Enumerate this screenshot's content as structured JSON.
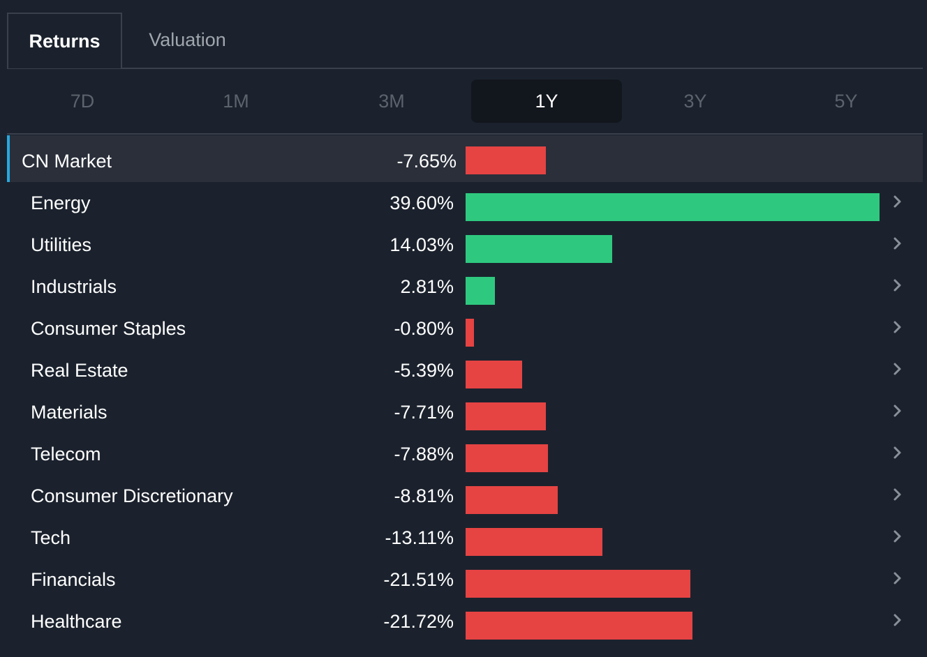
{
  "tabs": [
    {
      "label": "Returns",
      "active": true
    },
    {
      "label": "Valuation",
      "active": false
    }
  ],
  "periods": [
    "7D",
    "1M",
    "3M",
    "1Y",
    "3Y",
    "5Y"
  ],
  "active_period": "1Y",
  "colors": {
    "positive": "#2ec97f",
    "negative": "#e64343",
    "highlight": "#29a8df"
  },
  "chart_data": {
    "type": "bar",
    "orientation": "horizontal",
    "categories": [
      "CN Market",
      "Energy",
      "Utilities",
      "Industrials",
      "Consumer Staples",
      "Real Estate",
      "Materials",
      "Telecom",
      "Consumer Discretionary",
      "Tech",
      "Financials",
      "Healthcare"
    ],
    "values": [
      -7.65,
      39.6,
      14.03,
      2.81,
      -0.8,
      -5.39,
      -7.71,
      -7.88,
      -8.81,
      -13.11,
      -21.51,
      -21.72
    ],
    "labels": [
      "-7.65%",
      "39.60%",
      "14.03%",
      "2.81%",
      "-0.80%",
      "-5.39%",
      "-7.71%",
      "-7.88%",
      "-8.81%",
      "-13.11%",
      "-21.51%",
      "-21.72%"
    ],
    "bar_length": "absolute value",
    "max_abs": 39.6
  },
  "rows": [
    {
      "name": "CN Market",
      "value": "-7.65%"
    },
    {
      "name": "Energy",
      "value": "39.60%"
    },
    {
      "name": "Utilities",
      "value": "14.03%"
    },
    {
      "name": "Industrials",
      "value": "2.81%"
    },
    {
      "name": "Consumer Staples",
      "value": "-0.80%"
    },
    {
      "name": "Real Estate",
      "value": "-5.39%"
    },
    {
      "name": "Materials",
      "value": "-7.71%"
    },
    {
      "name": "Telecom",
      "value": "-7.88%"
    },
    {
      "name": "Consumer Discretionary",
      "value": "-8.81%"
    },
    {
      "name": "Tech",
      "value": "-13.11%"
    },
    {
      "name": "Financials",
      "value": "-21.51%"
    },
    {
      "name": "Healthcare",
      "value": "-21.72%"
    }
  ],
  "row_icon": "chevron-right-icon"
}
